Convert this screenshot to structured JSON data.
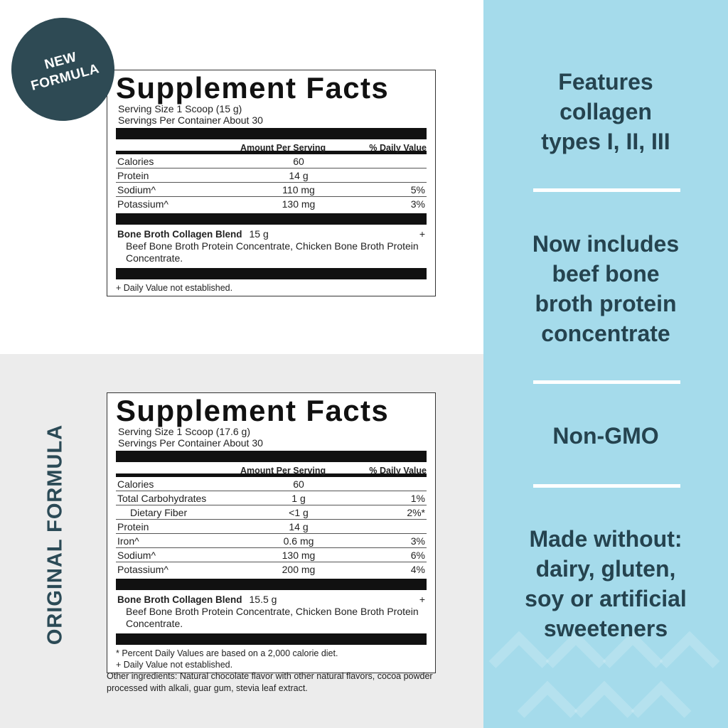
{
  "badge": {
    "line1": "NEW",
    "line2": "FORMULA"
  },
  "original_label": "ORIGINAL FORMULA",
  "new_formula": {
    "title": "Supplement Facts",
    "serving_size": "Serving Size 1 Scoop (15 g)",
    "servings_per_container": "Servings Per Container About 30",
    "col_amount": "Amount Per Serving",
    "col_dv": "% Daily Value",
    "rows": [
      {
        "name": "Calories",
        "amount": "60",
        "dv": ""
      },
      {
        "name": "Protein",
        "amount": "14 g",
        "dv": ""
      },
      {
        "name": "Sodium^",
        "amount": "110 mg",
        "dv": "5%"
      },
      {
        "name": "Potassium^",
        "amount": "130 mg",
        "dv": "3%"
      }
    ],
    "blend": {
      "name": "Bone Broth Collagen Blend",
      "amount": "15 g",
      "dv": "+",
      "ingredients": "Beef Bone Broth Protein Concentrate, Chicken Bone Broth Protein Concentrate."
    },
    "footnotes": [
      "+ Daily Value not established."
    ]
  },
  "original_formula": {
    "title": "Supplement Facts",
    "serving_size": "Serving Size 1 Scoop (17.6 g)",
    "servings_per_container": "Servings Per Container About 30",
    "col_amount": "Amount Per Serving",
    "col_dv": "% Daily Value",
    "rows": [
      {
        "name": "Calories",
        "amount": "60",
        "dv": ""
      },
      {
        "name": "Total Carbohydrates",
        "amount": "1 g",
        "dv": "1%"
      },
      {
        "name": "Dietary Fiber",
        "amount": "<1 g",
        "dv": "2%*",
        "indent": true
      },
      {
        "name": "Protein",
        "amount": "14 g",
        "dv": ""
      },
      {
        "name": "Iron^",
        "amount": "0.6 mg",
        "dv": "3%"
      },
      {
        "name": "Sodium^",
        "amount": "130 mg",
        "dv": "6%"
      },
      {
        "name": "Potassium^",
        "amount": "200 mg",
        "dv": "4%"
      }
    ],
    "blend": {
      "name": "Bone Broth Collagen Blend",
      "amount": "15.5 g",
      "dv": "+",
      "ingredients": "Beef Bone Broth Protein Concentrate, Chicken Bone Broth Protein Concentrate."
    },
    "footnotes": [
      "* Percent Daily Values are based on a 2,000 calorie diet.",
      "+ Daily Value not established."
    ],
    "other_ingredients": "Other ingredients: Natural chocolate flavor with other natural flavors, cocoa powder processed with alkali, guar gum, stevia leaf extract."
  },
  "features": [
    {
      "lines": [
        "Features",
        "collagen",
        "types I, II, III"
      ]
    },
    {
      "lines": [
        "Now includes",
        "beef bone",
        "broth protein",
        "concentrate"
      ]
    },
    {
      "lines": [
        "Non-GMO"
      ]
    },
    {
      "lines": [
        "Made without:",
        "dairy, gluten,",
        "soy or artificial",
        "sweeteners"
      ]
    }
  ],
  "colors": {
    "accent_dark": "#2e4a54",
    "panel_blue": "#a5dbeb",
    "text_teal": "#25434f"
  }
}
